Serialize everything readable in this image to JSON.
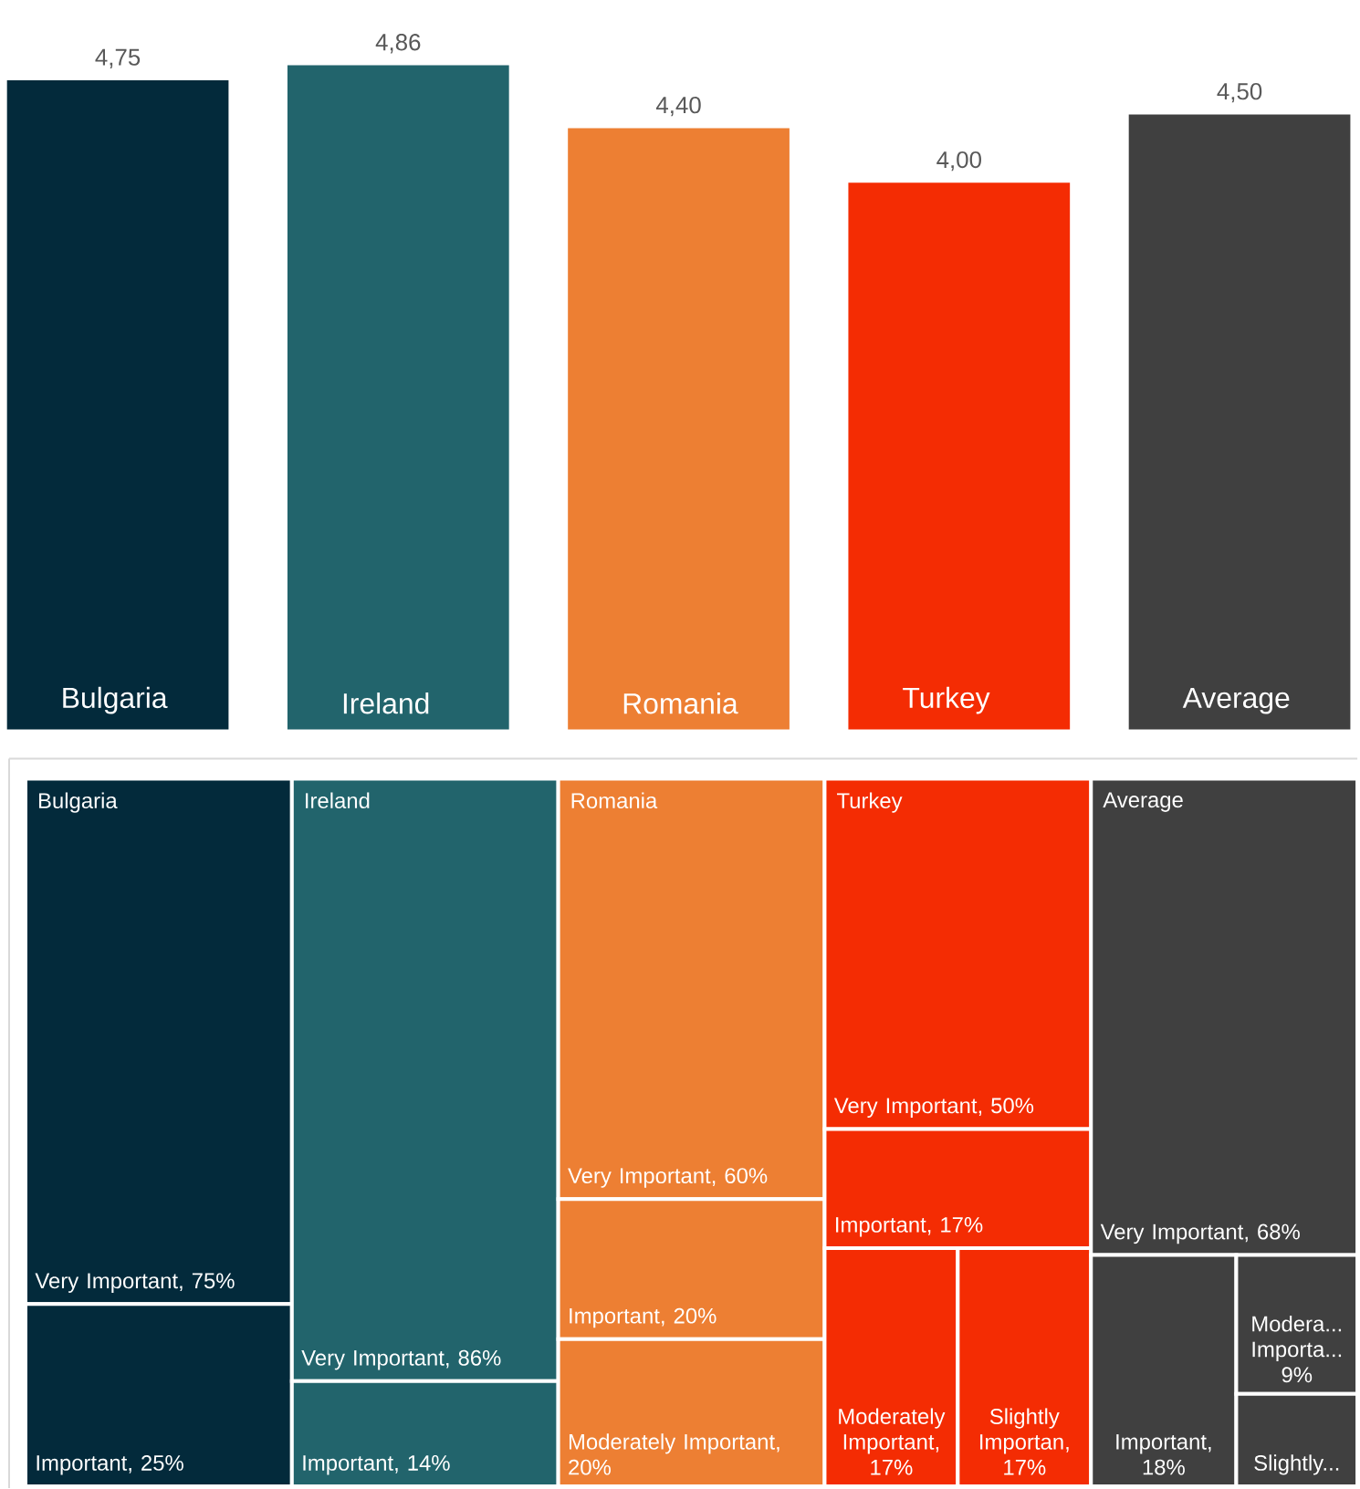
{
  "chart_data": [
    {
      "type": "bar",
      "categories": [
        "Bulgaria",
        "Ireland",
        "Romania",
        "Turkey",
        "Average"
      ],
      "values": [
        4.75,
        4.86,
        4.4,
        4.0,
        4.5
      ],
      "colors": [
        "#032a3b",
        "#22646c",
        "#ed7f33",
        "#f42c03",
        "#404040"
      ],
      "value_labels": [
        "4,75",
        "4,86",
        "4,40",
        "4,00",
        "4,50"
      ]
    },
    {
      "type": "other",
      "categories": [
        "Bulgaria",
        "Ireland",
        "Romania",
        "Turkey",
        "Average"
      ],
      "series": [
        {
          "colors": [
            "#032a3b",
            "#22646c",
            "#ed7f33",
            "#f42c03",
            "#404040"
          ],
          "values": [
            75,
            86,
            60,
            50,
            68
          ],
          "value_labels": [
            "Very Important, 75%",
            "Very Important, 86%",
            "Very Important, 60%",
            "Very Important, 50%",
            "Very Important, 68%"
          ]
        },
        {
          "colors": [
            "#032a3b",
            "#22646c",
            "#ed7f33",
            "#f42c03",
            "#404040"
          ],
          "values": [
            25,
            14,
            20,
            17,
            18
          ],
          "value_labels": [
            "Important, 25%",
            "Important, 14%",
            "Important, 20%",
            "Important, 17%",
            "Important, 18%"
          ]
        },
        {
          "colors": [
            null,
            null,
            "#ed7f33",
            "#f42c03",
            "#404040"
          ],
          "values": [
            null,
            null,
            20,
            17,
            9
          ],
          "value_labels": [
            null,
            null,
            "Moderately Important, 20%",
            "Moderately Important, 17%",
            "Modera... Importa... 9%"
          ]
        },
        {
          "colors": [
            null,
            null,
            null,
            "#f42c03",
            "#404040"
          ],
          "values": [
            null,
            null,
            null,
            17,
            null
          ],
          "value_labels": [
            null,
            null,
            null,
            "Slightly Importan, 17%",
            "Slightly..."
          ]
        }
      ]
    }
  ]
}
